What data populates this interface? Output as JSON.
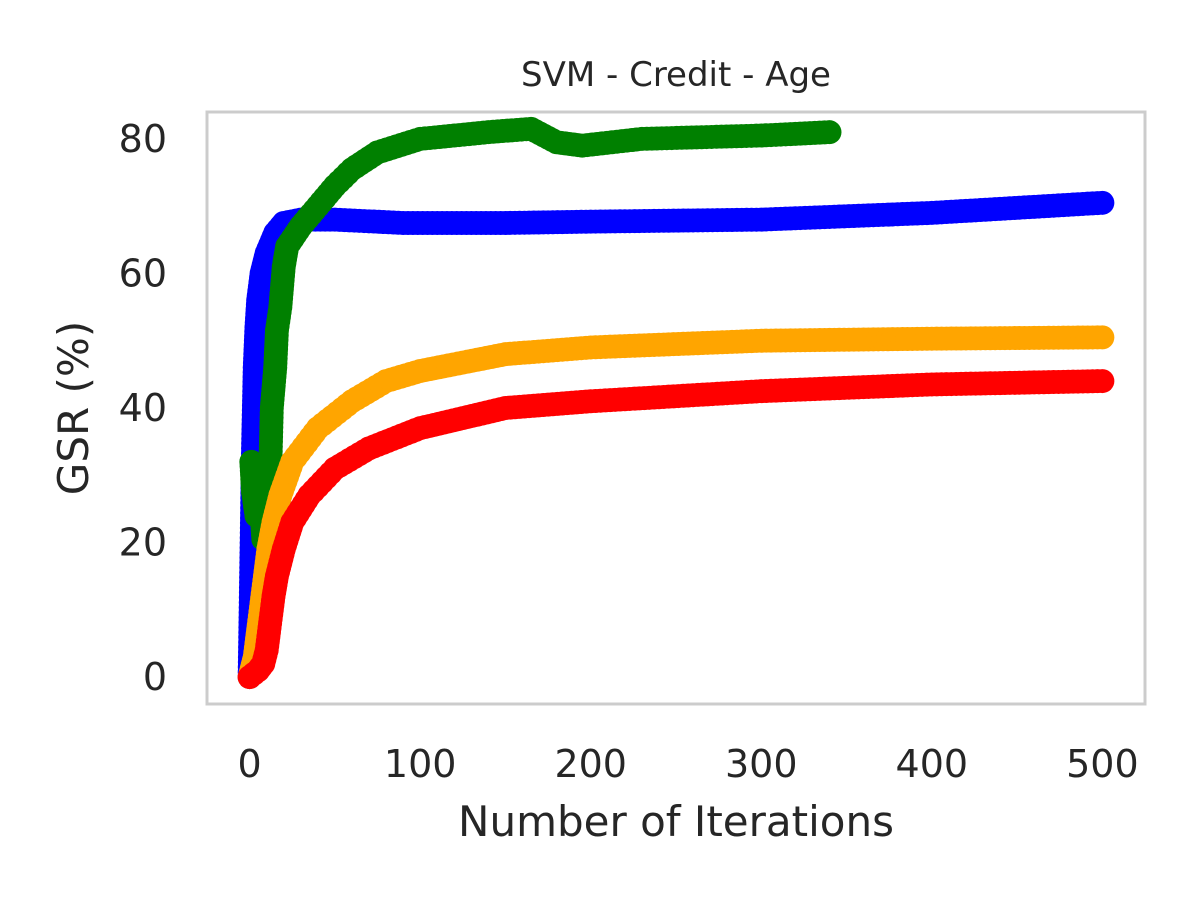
{
  "chart_data": {
    "type": "line",
    "title": "SVM - Credit - Age",
    "xlabel": "Number of Iterations",
    "ylabel": "GSR (%)",
    "xlim": [
      -25,
      525
    ],
    "ylim": [
      -4,
      84
    ],
    "xticks": [
      0,
      100,
      200,
      300,
      400,
      500
    ],
    "yticks": [
      0,
      20,
      40,
      60,
      80
    ],
    "grid": false,
    "series": [
      {
        "color": "#0000ff",
        "points": [
          [
            0,
            0
          ],
          [
            2,
            34
          ],
          [
            3,
            46
          ],
          [
            4,
            52
          ],
          [
            5,
            56
          ],
          [
            7,
            60
          ],
          [
            10,
            63
          ],
          [
            15,
            66
          ],
          [
            20,
            67.5
          ],
          [
            30,
            68
          ],
          [
            50,
            68
          ],
          [
            90,
            67.5
          ],
          [
            150,
            67.5
          ],
          [
            200,
            67.7
          ],
          [
            300,
            68
          ],
          [
            400,
            69
          ],
          [
            500,
            70.5
          ]
        ]
      },
      {
        "color": "#008000",
        "points": [
          [
            1,
            32
          ],
          [
            2,
            27.5
          ],
          [
            4,
            24
          ],
          [
            6,
            28
          ],
          [
            8,
            20.5
          ],
          [
            10,
            24
          ],
          [
            12,
            30
          ],
          [
            13,
            40
          ],
          [
            15,
            46
          ],
          [
            16,
            51.5
          ],
          [
            18,
            55
          ],
          [
            20,
            61
          ],
          [
            22,
            64
          ],
          [
            30,
            67
          ],
          [
            40,
            70
          ],
          [
            50,
            73
          ],
          [
            60,
            75.5
          ],
          [
            75,
            78
          ],
          [
            100,
            80
          ],
          [
            140,
            81
          ],
          [
            165,
            81.5
          ],
          [
            180,
            79.5
          ],
          [
            195,
            79
          ],
          [
            230,
            80
          ],
          [
            300,
            80.5
          ],
          [
            340,
            81
          ]
        ]
      },
      {
        "color": "#ffa500",
        "points": [
          [
            0,
            0
          ],
          [
            3,
            3
          ],
          [
            5,
            7
          ],
          [
            7,
            11
          ],
          [
            9,
            15
          ],
          [
            11,
            19
          ],
          [
            14,
            23
          ],
          [
            18,
            27
          ],
          [
            25,
            32
          ],
          [
            40,
            37
          ],
          [
            60,
            41
          ],
          [
            80,
            44
          ],
          [
            100,
            45.5
          ],
          [
            150,
            48
          ],
          [
            200,
            49
          ],
          [
            300,
            50
          ],
          [
            400,
            50.3
          ],
          [
            500,
            50.5
          ]
        ]
      },
      {
        "color": "#ff0000",
        "points": [
          [
            0,
            0
          ],
          [
            5,
            1
          ],
          [
            8,
            2
          ],
          [
            10,
            4
          ],
          [
            12,
            8
          ],
          [
            14,
            12
          ],
          [
            16,
            15
          ],
          [
            20,
            19
          ],
          [
            25,
            23
          ],
          [
            35,
            27
          ],
          [
            50,
            31
          ],
          [
            70,
            34
          ],
          [
            100,
            37
          ],
          [
            150,
            40
          ],
          [
            200,
            41
          ],
          [
            300,
            42.5
          ],
          [
            400,
            43.5
          ],
          [
            500,
            44
          ]
        ]
      }
    ]
  }
}
